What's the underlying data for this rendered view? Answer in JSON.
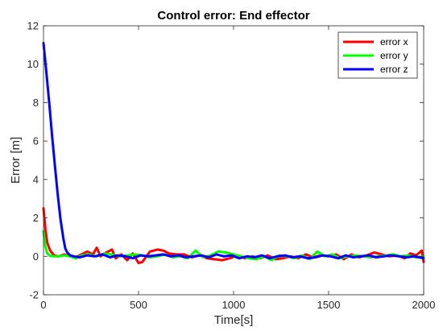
{
  "chart_data": {
    "type": "line",
    "title": "Control error: End effector",
    "xlabel": "Time[s]",
    "ylabel": "Error [m]",
    "xlim": [
      0,
      2000
    ],
    "ylim": [
      -2,
      12
    ],
    "xticks": [
      0,
      500,
      1000,
      1500,
      2000
    ],
    "yticks": [
      -2,
      0,
      2,
      4,
      6,
      8,
      10,
      12
    ],
    "grid": false,
    "legend_position": "top-right",
    "series": [
      {
        "name": "error x",
        "color": "#ff0000",
        "x": [
          0,
          10,
          20,
          35,
          55,
          80,
          110,
          140,
          170,
          200,
          230,
          260,
          280,
          300,
          330,
          360,
          380,
          410,
          440,
          470,
          500,
          520,
          560,
          600,
          630,
          660,
          700,
          740,
          780,
          820,
          860,
          900,
          940,
          980,
          1020,
          1060,
          1100,
          1140,
          1180,
          1220,
          1260,
          1300,
          1340,
          1380,
          1420,
          1460,
          1500,
          1540,
          1580,
          1620,
          1660,
          1700,
          1740,
          1780,
          1820,
          1860,
          1900,
          1930,
          1960,
          1990,
          2000
        ],
        "values": [
          2.5,
          1.4,
          0.7,
          0.3,
          0.05,
          0.0,
          0.1,
          0.0,
          -0.05,
          0.1,
          0.25,
          0.1,
          0.45,
          0.0,
          0.2,
          0.35,
          -0.1,
          0.1,
          -0.2,
          0.15,
          -0.35,
          -0.3,
          0.25,
          0.35,
          0.3,
          0.15,
          0.1,
          0.1,
          -0.05,
          0.05,
          -0.1,
          -0.15,
          -0.2,
          -0.1,
          0.05,
          -0.1,
          0.0,
          -0.1,
          0.05,
          -0.15,
          -0.1,
          0.0,
          -0.1,
          0.1,
          -0.05,
          0.05,
          0.0,
          0.1,
          -0.15,
          0.1,
          -0.05,
          0.05,
          0.2,
          0.1,
          0.0,
          0.05,
          -0.1,
          0.15,
          0.05,
          0.3,
          -0.3
        ]
      },
      {
        "name": "error y",
        "color": "#00ff00",
        "x": [
          0,
          10,
          20,
          35,
          55,
          80,
          110,
          140,
          170,
          200,
          240,
          280,
          320,
          360,
          400,
          440,
          480,
          520,
          560,
          600,
          640,
          680,
          720,
          760,
          800,
          840,
          880,
          920,
          960,
          1000,
          1040,
          1080,
          1120,
          1160,
          1200,
          1240,
          1280,
          1320,
          1360,
          1400,
          1440,
          1480,
          1520,
          1560,
          1600,
          1640,
          1680,
          1720,
          1760,
          1800,
          1840,
          1880,
          1920,
          1960,
          2000
        ],
        "values": [
          1.3,
          0.5,
          0.15,
          0.02,
          0.0,
          0.0,
          0.05,
          0.0,
          -0.1,
          0.05,
          0.1,
          0.0,
          0.15,
          0.1,
          0.0,
          0.05,
          0.1,
          0.05,
          -0.05,
          0.0,
          0.1,
          -0.05,
          0.0,
          -0.1,
          0.3,
          -0.05,
          0.05,
          0.25,
          0.2,
          0.1,
          0.0,
          -0.1,
          -0.15,
          0.0,
          -0.2,
          0.05,
          0.0,
          -0.1,
          0.05,
          -0.15,
          0.25,
          0.0,
          0.1,
          -0.1,
          0.0,
          0.05,
          0.0,
          -0.05,
          0.0,
          0.05,
          0.1,
          0.0,
          0.05,
          -0.05,
          0.0
        ]
      },
      {
        "name": "error z",
        "color": "#0000ff",
        "x": [
          0,
          15,
          30,
          45,
          60,
          75,
          90,
          105,
          115,
          125,
          140,
          160,
          190,
          230,
          270,
          310,
          350,
          390,
          430,
          470,
          510,
          550,
          590,
          630,
          670,
          710,
          750,
          790,
          830,
          870,
          910,
          950,
          990,
          1030,
          1070,
          1110,
          1150,
          1190,
          1230,
          1270,
          1310,
          1350,
          1390,
          1430,
          1470,
          1510,
          1550,
          1590,
          1630,
          1670,
          1710,
          1750,
          1790,
          1830,
          1870,
          1910,
          1950,
          2000
        ],
        "values": [
          11.1,
          9.6,
          8.0,
          6.3,
          4.7,
          3.2,
          1.9,
          0.9,
          0.4,
          0.2,
          0.05,
          0.0,
          -0.05,
          0.05,
          0.0,
          0.1,
          -0.05,
          0.05,
          0.0,
          -0.1,
          0.05,
          0.0,
          0.05,
          0.1,
          0.0,
          0.05,
          -0.05,
          0.0,
          0.05,
          -0.05,
          0.1,
          0.0,
          0.05,
          -0.1,
          0.0,
          -0.05,
          0.05,
          -0.1,
          0.0,
          0.05,
          -0.05,
          0.0,
          -0.1,
          -0.05,
          0.05,
          0.0,
          -0.1,
          0.05,
          -0.05,
          0.0,
          0.05,
          -0.05,
          0.0,
          0.05,
          0.0,
          -0.05,
          0.0,
          -0.1
        ]
      }
    ]
  }
}
